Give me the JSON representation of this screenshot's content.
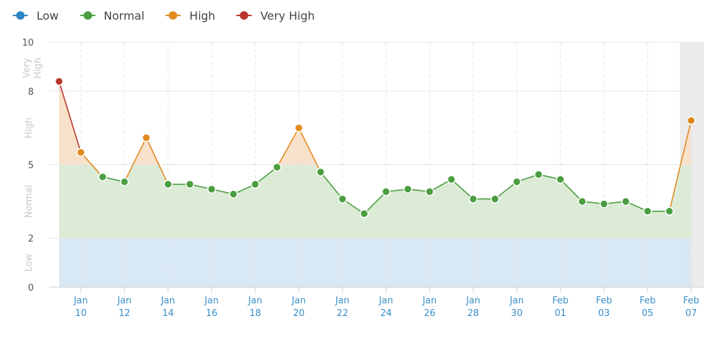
{
  "legend": [
    {
      "label": "Low",
      "color": "#2f86c4"
    },
    {
      "label": "Normal",
      "color": "#4a9e3f"
    },
    {
      "label": "High",
      "color": "#e08a1e"
    },
    {
      "label": "Very High",
      "color": "#b8362b"
    }
  ],
  "chart_data": {
    "type": "line",
    "title": "",
    "xlabel": "",
    "ylabel": "",
    "ylim": [
      0,
      10
    ],
    "y_ticks": [
      0,
      2,
      5,
      8,
      10
    ],
    "grid": true,
    "legend_position": "top-left",
    "bands": [
      {
        "label": "Low",
        "from": 0,
        "to": 2,
        "color": "#d7e7f4"
      },
      {
        "label": "Normal",
        "from": 2,
        "to": 5,
        "color": "#dcebd6"
      },
      {
        "label": "High",
        "from": 5,
        "to": 8,
        "color": "#f8e1ca"
      },
      {
        "label": "Very High",
        "from": 8,
        "to": 10,
        "color": "#f2d5d2"
      }
    ],
    "band_labels": [
      "Low",
      "Normal",
      "High",
      "Very High"
    ],
    "x_tick_labels": [
      {
        "mon": "Jan",
        "day": "10"
      },
      {
        "mon": "Jan",
        "day": "12"
      },
      {
        "mon": "Jan",
        "day": "14"
      },
      {
        "mon": "Jan",
        "day": "16"
      },
      {
        "mon": "Jan",
        "day": "18"
      },
      {
        "mon": "Jan",
        "day": "20"
      },
      {
        "mon": "Jan",
        "day": "22"
      },
      {
        "mon": "Jan",
        "day": "24"
      },
      {
        "mon": "Jan",
        "day": "26"
      },
      {
        "mon": "Jan",
        "day": "28"
      },
      {
        "mon": "Jan",
        "day": "30"
      },
      {
        "mon": "Feb",
        "day": "01"
      },
      {
        "mon": "Feb",
        "day": "03"
      },
      {
        "mon": "Feb",
        "day": "05"
      },
      {
        "mon": "Feb",
        "day": "07"
      }
    ],
    "x": [
      "Jan 09",
      "Jan 10",
      "Jan 11",
      "Jan 12",
      "Jan 13",
      "Jan 14",
      "Jan 15",
      "Jan 16",
      "Jan 17",
      "Jan 18",
      "Jan 19",
      "Jan 20",
      "Jan 21",
      "Jan 22",
      "Jan 23",
      "Jan 24",
      "Jan 25",
      "Jan 26",
      "Jan 27",
      "Jan 28",
      "Jan 29",
      "Jan 30",
      "Jan 31",
      "Feb 01",
      "Feb 02",
      "Feb 03",
      "Feb 04",
      "Feb 05",
      "Feb 06",
      "Feb 07"
    ],
    "values": [
      8.4,
      5.5,
      4.5,
      4.3,
      6.1,
      4.2,
      4.2,
      4.0,
      3.8,
      4.2,
      4.9,
      6.5,
      4.7,
      3.6,
      3.0,
      3.9,
      4.0,
      3.9,
      4.4,
      3.6,
      3.6,
      4.3,
      4.6,
      4.4,
      3.5,
      3.4,
      3.5,
      3.1,
      3.1,
      6.8
    ],
    "highlighted_x": "Feb 07"
  }
}
